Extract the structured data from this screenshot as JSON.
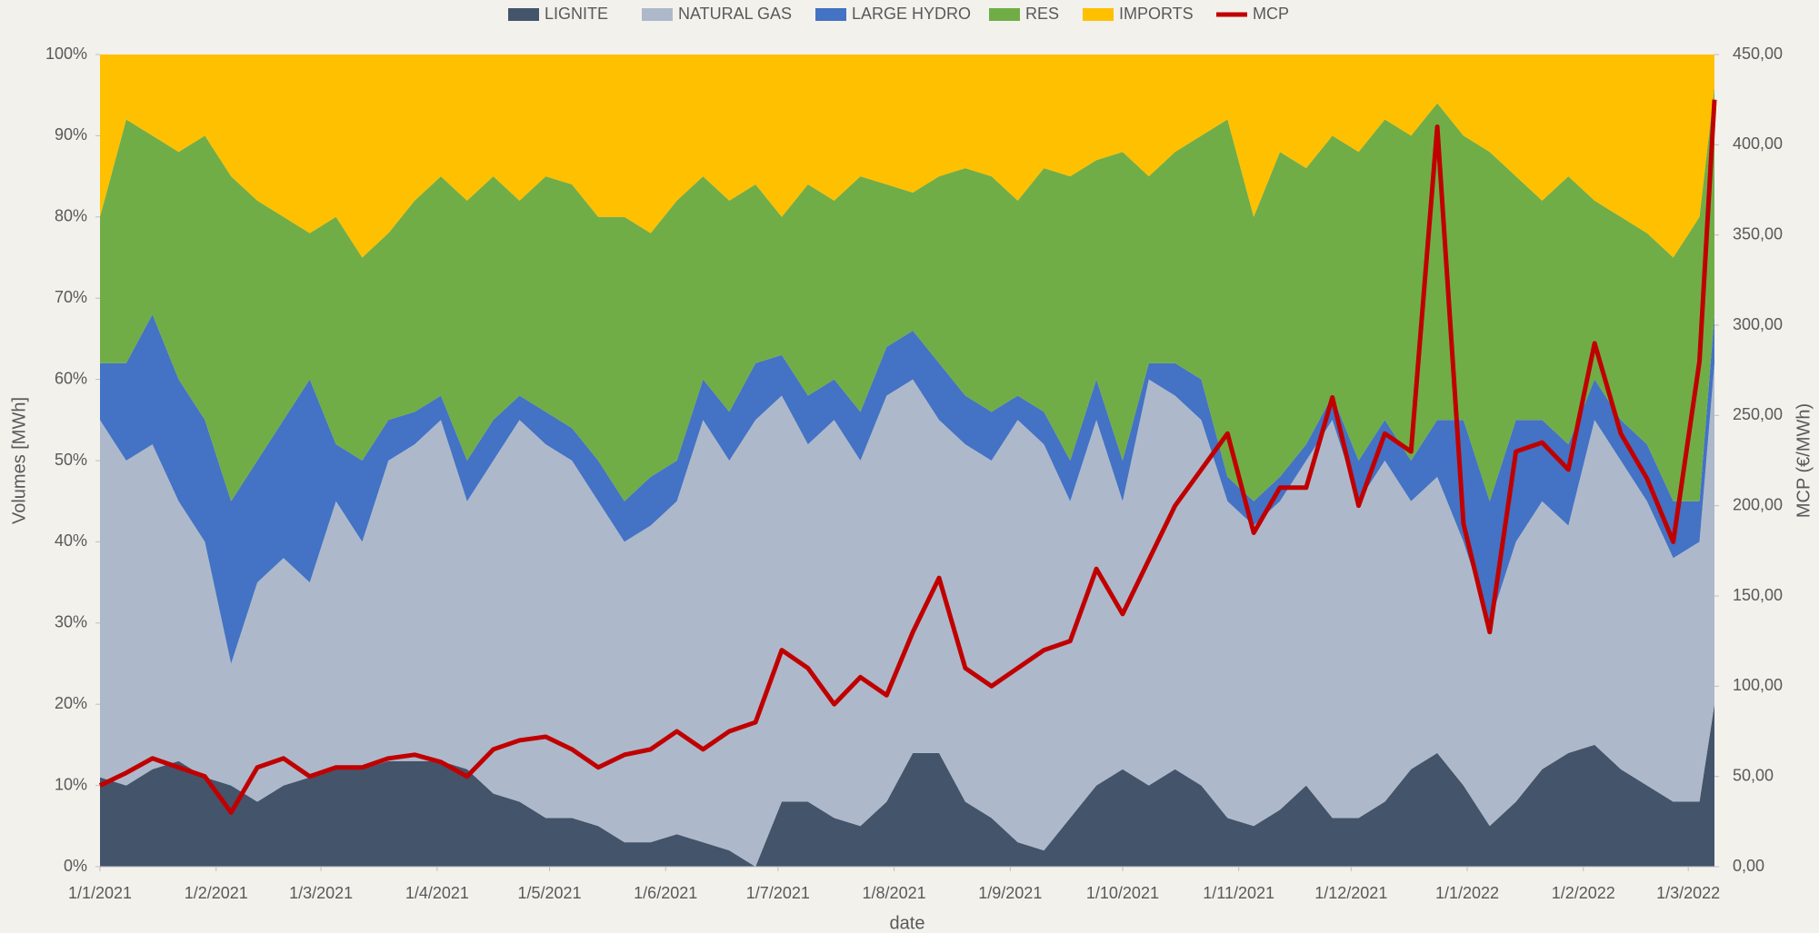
{
  "chart_data": {
    "type": "stacked-area-line",
    "x_label": "date",
    "y_label": "Volumes [MWh]",
    "y2_label": "MCP (€/MWh)",
    "x": [
      "2021-01-01",
      "2021-01-08",
      "2021-01-15",
      "2021-01-22",
      "2021-01-29",
      "2021-02-05",
      "2021-02-12",
      "2021-02-19",
      "2021-02-26",
      "2021-03-05",
      "2021-03-12",
      "2021-03-19",
      "2021-03-26",
      "2021-04-02",
      "2021-04-09",
      "2021-04-16",
      "2021-04-23",
      "2021-04-30",
      "2021-05-07",
      "2021-05-14",
      "2021-05-21",
      "2021-05-28",
      "2021-06-04",
      "2021-06-11",
      "2021-06-18",
      "2021-06-25",
      "2021-07-02",
      "2021-07-09",
      "2021-07-16",
      "2021-07-23",
      "2021-07-30",
      "2021-08-06",
      "2021-08-13",
      "2021-08-20",
      "2021-08-27",
      "2021-09-03",
      "2021-09-10",
      "2021-09-17",
      "2021-09-24",
      "2021-10-01",
      "2021-10-08",
      "2021-10-15",
      "2021-10-22",
      "2021-10-29",
      "2021-11-05",
      "2021-11-12",
      "2021-11-19",
      "2021-11-26",
      "2021-12-03",
      "2021-12-10",
      "2021-12-17",
      "2021-12-24",
      "2021-12-31",
      "2022-01-07",
      "2022-01-14",
      "2022-01-21",
      "2022-01-28",
      "2022-02-04",
      "2022-02-11",
      "2022-02-18",
      "2022-02-25",
      "2022-03-04",
      "2022-03-08"
    ],
    "series": [
      {
        "name": "LIGNITE",
        "color": "#44546a",
        "values": [
          11,
          10,
          12,
          13,
          11,
          10,
          8,
          10,
          11,
          12,
          12,
          13,
          13,
          13,
          12,
          9,
          8,
          6,
          6,
          5,
          3,
          3,
          4,
          3,
          2,
          0,
          8,
          8,
          6,
          5,
          8,
          14,
          14,
          8,
          6,
          3,
          2,
          6,
          10,
          12,
          10,
          12,
          10,
          6,
          5,
          7,
          10,
          6,
          6,
          8,
          12,
          14,
          10,
          5,
          8,
          12,
          14,
          15,
          12,
          10,
          8,
          8,
          20
        ]
      },
      {
        "name": "NATURAL GAS",
        "color": "#adb9ca",
        "values": [
          44,
          40,
          40,
          32,
          29,
          15,
          27,
          28,
          24,
          33,
          28,
          37,
          39,
          42,
          33,
          41,
          47,
          46,
          44,
          40,
          37,
          39,
          41,
          52,
          48,
          55,
          50,
          44,
          49,
          45,
          50,
          46,
          41,
          44,
          44,
          52,
          50,
          39,
          45,
          33,
          50,
          46,
          45,
          39,
          37,
          38,
          40,
          49,
          39,
          42,
          33,
          34,
          30,
          25,
          32,
          33,
          28,
          40,
          38,
          35,
          30,
          32,
          42
        ]
      },
      {
        "name": "LARGE HYDRO",
        "color": "#4472c4",
        "values": [
          7,
          12,
          16,
          15,
          15,
          20,
          15,
          17,
          25,
          7,
          10,
          5,
          4,
          3,
          5,
          5,
          3,
          4,
          4,
          5,
          5,
          6,
          5,
          5,
          6,
          7,
          5,
          6,
          5,
          6,
          6,
          6,
          7,
          6,
          6,
          3,
          4,
          5,
          5,
          5,
          2,
          4,
          5,
          3,
          3,
          3,
          2,
          3,
          5,
          5,
          5,
          7,
          15,
          15,
          15,
          10,
          10,
          5,
          5,
          7,
          7,
          5,
          6
        ]
      },
      {
        "name": "RES",
        "color": "#70ad47",
        "values": [
          18,
          30,
          22,
          28,
          35,
          40,
          32,
          25,
          18,
          28,
          25,
          23,
          26,
          27,
          32,
          30,
          24,
          29,
          30,
          30,
          35,
          30,
          32,
          25,
          26,
          22,
          17,
          26,
          22,
          29,
          20,
          17,
          23,
          28,
          29,
          24,
          30,
          35,
          27,
          38,
          23,
          26,
          30,
          44,
          35,
          40,
          34,
          32,
          38,
          37,
          40,
          39,
          35,
          43,
          30,
          27,
          33,
          22,
          25,
          26,
          30,
          35,
          28
        ]
      },
      {
        "name": "IMPORTS",
        "color": "#ffc000",
        "values": [
          20,
          8,
          10,
          12,
          10,
          15,
          18,
          20,
          22,
          20,
          25,
          22,
          18,
          15,
          18,
          15,
          18,
          15,
          16,
          20,
          20,
          22,
          18,
          15,
          18,
          16,
          20,
          16,
          18,
          15,
          16,
          17,
          15,
          14,
          15,
          18,
          14,
          15,
          13,
          12,
          15,
          12,
          10,
          8,
          20,
          12,
          14,
          10,
          12,
          8,
          10,
          6,
          10,
          12,
          15,
          18,
          15,
          18,
          20,
          22,
          25,
          20,
          4
        ]
      },
      {
        "name": "MCP",
        "color": "#c00000",
        "axis": "y2",
        "values": [
          45,
          52,
          60,
          55,
          50,
          30,
          55,
          60,
          50,
          55,
          55,
          60,
          62,
          58,
          50,
          65,
          70,
          72,
          65,
          55,
          62,
          65,
          75,
          65,
          75,
          80,
          120,
          110,
          90,
          105,
          95,
          130,
          160,
          110,
          100,
          110,
          120,
          125,
          165,
          140,
          170,
          200,
          220,
          240,
          185,
          210,
          210,
          260,
          200,
          240,
          230,
          410,
          190,
          130,
          230,
          235,
          220,
          290,
          240,
          215,
          180,
          280,
          425
        ]
      }
    ],
    "ylim": [
      0,
      100
    ],
    "yticks": [
      {
        "value": 0,
        "label": "0%"
      },
      {
        "value": 10,
        "label": "10%"
      },
      {
        "value": 20,
        "label": "20%"
      },
      {
        "value": 30,
        "label": "30%"
      },
      {
        "value": 40,
        "label": "40%"
      },
      {
        "value": 50,
        "label": "50%"
      },
      {
        "value": 60,
        "label": "60%"
      },
      {
        "value": 70,
        "label": "70%"
      },
      {
        "value": 80,
        "label": "80%"
      },
      {
        "value": 90,
        "label": "90%"
      },
      {
        "value": 100,
        "label": "100%"
      }
    ],
    "y2lim": [
      0,
      450
    ],
    "y2ticks": [
      {
        "value": 0,
        "label": "0,00"
      },
      {
        "value": 50,
        "label": "50,00"
      },
      {
        "value": 100,
        "label": "100,00"
      },
      {
        "value": 150,
        "label": "150,00"
      },
      {
        "value": 200,
        "label": "200,00"
      },
      {
        "value": 250,
        "label": "250,00"
      },
      {
        "value": 300,
        "label": "300,00"
      },
      {
        "value": 350,
        "label": "350,00"
      },
      {
        "value": 400,
        "label": "400,00"
      },
      {
        "value": 450,
        "label": "450,00"
      }
    ],
    "xlim": [
      "2021-01-01",
      "2022-03-08"
    ],
    "xticks": [
      {
        "value": "2021-01-01",
        "label": "1/1/2021"
      },
      {
        "value": "2021-02-01",
        "label": "1/2/2021"
      },
      {
        "value": "2021-03-01",
        "label": "1/3/2021"
      },
      {
        "value": "2021-04-01",
        "label": "1/4/2021"
      },
      {
        "value": "2021-05-01",
        "label": "1/5/2021"
      },
      {
        "value": "2021-06-01",
        "label": "1/6/2021"
      },
      {
        "value": "2021-07-01",
        "label": "1/7/2021"
      },
      {
        "value": "2021-08-01",
        "label": "1/8/2021"
      },
      {
        "value": "2021-09-01",
        "label": "1/9/2021"
      },
      {
        "value": "2021-10-01",
        "label": "1/10/2021"
      },
      {
        "value": "2021-11-01",
        "label": "1/11/2021"
      },
      {
        "value": "2021-12-01",
        "label": "1/12/2021"
      },
      {
        "value": "2022-01-01",
        "label": "1/1/2022"
      },
      {
        "value": "2022-02-01",
        "label": "1/2/2022"
      },
      {
        "value": "2022-03-01",
        "label": "1/3/2022"
      }
    ],
    "legend": "top"
  }
}
